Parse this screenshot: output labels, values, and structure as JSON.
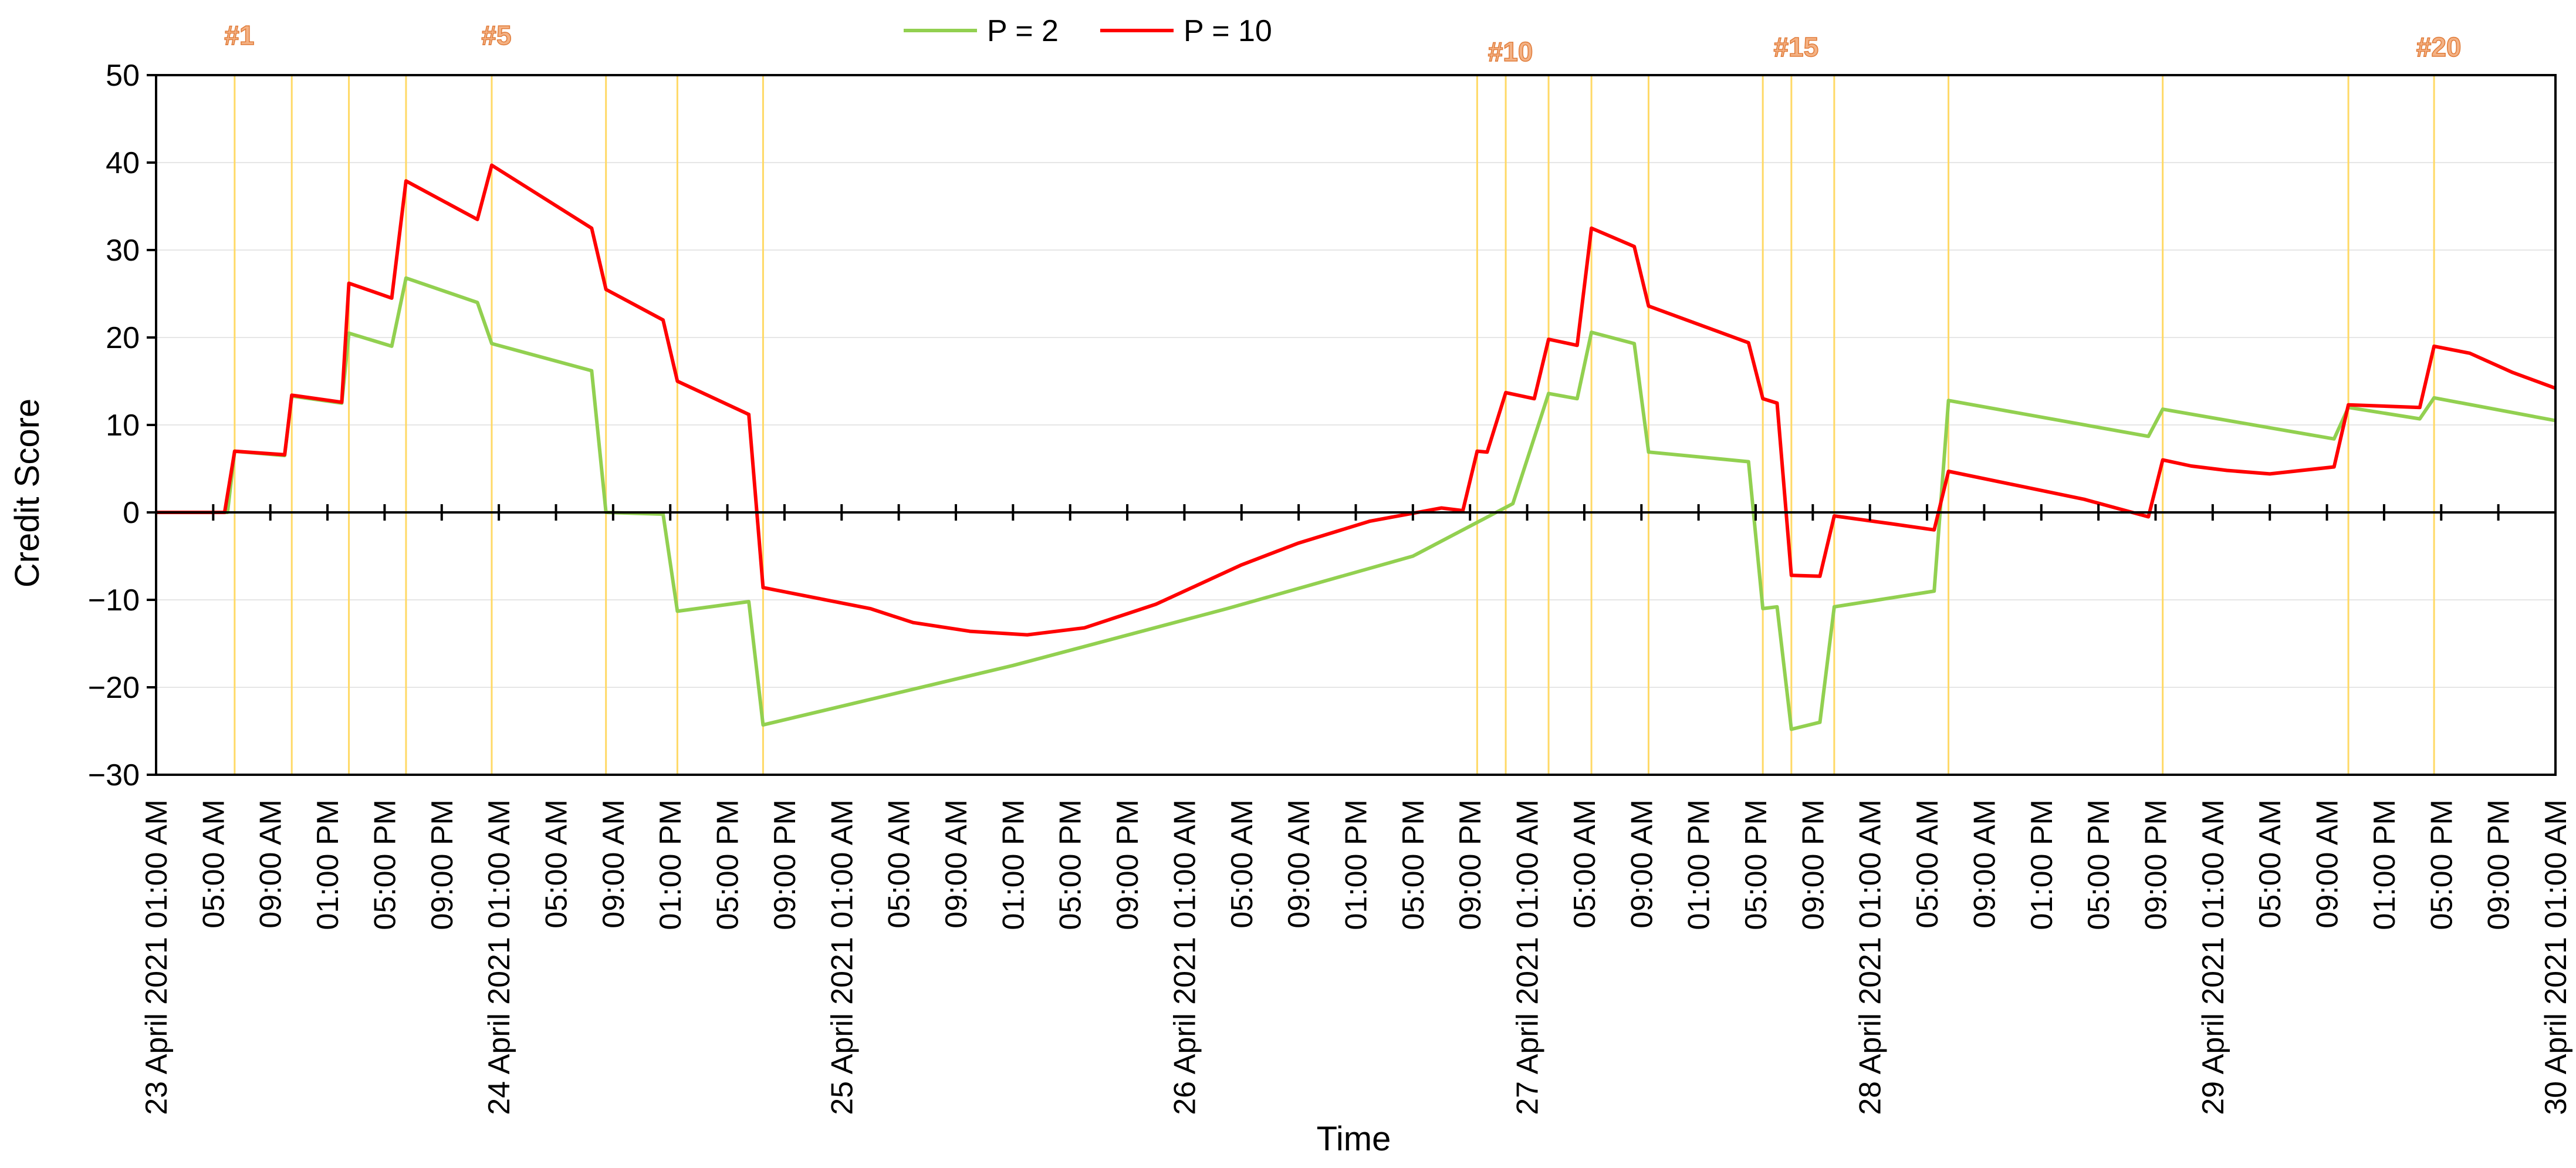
{
  "chart_data": {
    "type": "line",
    "xlabel": "Time",
    "ylabel": "Credit Score",
    "ylim": [
      -30,
      50
    ],
    "yticks": [
      -30,
      -20,
      -10,
      0,
      10,
      20,
      30,
      40,
      50
    ],
    "x_range_hours": [
      0,
      168
    ],
    "x_tick_labels": [
      "23 April 2021 01:00 AM",
      "05:00 AM",
      "09:00 AM",
      "01:00 PM",
      "05:00 PM",
      "09:00 PM",
      "24 April 2021 01:00 AM",
      "05:00 AM",
      "09:00 AM",
      "01:00 PM",
      "05:00 PM",
      "09:00 PM",
      "25 April 2021 01:00 AM",
      "05:00 AM",
      "09:00 AM",
      "01:00 PM",
      "05:00 PM",
      "09:00 PM",
      "26 April 2021 01:00 AM",
      "05:00 AM",
      "09:00 AM",
      "01:00 PM",
      "05:00 PM",
      "09:00 PM",
      "27 April 2021 01:00 AM",
      "05:00 AM",
      "09:00 AM",
      "01:00 PM",
      "05:00 PM",
      "09:00 PM",
      "28 April 2021 01:00 AM",
      "05:00 AM",
      "09:00 AM",
      "01:00 PM",
      "05:00 PM",
      "09:00 PM",
      "29 April 2021 01:00 AM",
      "05:00 AM",
      "09:00 AM",
      "01:00 PM",
      "05:00 PM",
      "09:00 PM",
      "30 April 2021 01:00 AM"
    ],
    "grid": true,
    "legend_position": "top",
    "event_lines_hours": [
      5.5,
      9.5,
      13.5,
      17.5,
      23.5,
      31.5,
      36.5,
      42.5,
      92.5,
      94.5,
      97.5,
      100.5,
      104.5,
      112.5,
      114.5,
      117.5,
      125.5,
      140.5,
      153.5,
      159.5
    ],
    "event_labels": [
      {
        "text": "#1",
        "event_index": 0
      },
      {
        "text": "#5",
        "event_index": 4
      },
      {
        "text": "#10",
        "event_index": 9
      },
      {
        "text": "#15",
        "event_index": 14
      },
      {
        "text": "#20",
        "event_index": 19
      }
    ],
    "series": [
      {
        "name": "P = 2",
        "color": "#92d050",
        "points": [
          [
            0,
            0
          ],
          [
            5,
            0
          ],
          [
            5.5,
            7
          ],
          [
            9,
            6.5
          ],
          [
            9.5,
            13.3
          ],
          [
            13,
            12.5
          ],
          [
            13.5,
            20.5
          ],
          [
            16.5,
            19
          ],
          [
            17.5,
            26.8
          ],
          [
            22.5,
            24
          ],
          [
            23.5,
            19.3
          ],
          [
            30.5,
            16.2
          ],
          [
            31.5,
            0
          ],
          [
            35.5,
            -0.2
          ],
          [
            36.5,
            -11.3
          ],
          [
            41.5,
            -10.2
          ],
          [
            42.5,
            -24.3
          ],
          [
            60,
            -17.5
          ],
          [
            75,
            -11
          ],
          [
            88,
            -5
          ],
          [
            95,
            1
          ],
          [
            97.5,
            13.6
          ],
          [
            99.5,
            13
          ],
          [
            100.5,
            20.6
          ],
          [
            103.5,
            19.3
          ],
          [
            104.5,
            6.9
          ],
          [
            111.5,
            5.8
          ],
          [
            112.5,
            -11
          ],
          [
            113.5,
            -10.8
          ],
          [
            114.5,
            -24.8
          ],
          [
            116.5,
            -24
          ],
          [
            117.5,
            -10.8
          ],
          [
            124.5,
            -9
          ],
          [
            125.5,
            12.8
          ],
          [
            139.5,
            8.7
          ],
          [
            140.5,
            11.8
          ],
          [
            152.5,
            8.4
          ],
          [
            153.5,
            12
          ],
          [
            158.5,
            10.7
          ],
          [
            159.5,
            13.1
          ],
          [
            168,
            10.5
          ]
        ]
      },
      {
        "name": "P = 10",
        "color": "#ff0000",
        "points": [
          [
            0,
            0
          ],
          [
            4.8,
            0
          ],
          [
            5.5,
            7
          ],
          [
            9,
            6.6
          ],
          [
            9.5,
            13.4
          ],
          [
            13,
            12.6
          ],
          [
            13.5,
            26.2
          ],
          [
            16.5,
            24.5
          ],
          [
            17.5,
            37.9
          ],
          [
            22.5,
            33.5
          ],
          [
            23.5,
            39.7
          ],
          [
            30.5,
            32.5
          ],
          [
            31.5,
            25.5
          ],
          [
            35.5,
            22
          ],
          [
            36.5,
            15
          ],
          [
            41.5,
            11.2
          ],
          [
            42.5,
            -8.6
          ],
          [
            50,
            -11
          ],
          [
            53,
            -12.6
          ],
          [
            57,
            -13.6
          ],
          [
            61,
            -14
          ],
          [
            65,
            -13.2
          ],
          [
            70,
            -10.5
          ],
          [
            76,
            -6
          ],
          [
            80,
            -3.5
          ],
          [
            85,
            -1
          ],
          [
            90,
            0.5
          ],
          [
            91.5,
            0.2
          ],
          [
            92.5,
            7
          ],
          [
            93.2,
            6.9
          ],
          [
            94.5,
            13.7
          ],
          [
            96.5,
            13
          ],
          [
            97.5,
            19.8
          ],
          [
            99.5,
            19.1
          ],
          [
            100.5,
            32.5
          ],
          [
            103.5,
            30.4
          ],
          [
            104.5,
            23.6
          ],
          [
            111.5,
            19.4
          ],
          [
            112.5,
            13
          ],
          [
            113.5,
            12.5
          ],
          [
            114.5,
            -7.2
          ],
          [
            116.5,
            -7.3
          ],
          [
            117.5,
            -0.4
          ],
          [
            121.5,
            -1.3
          ],
          [
            124.5,
            -2
          ],
          [
            125.5,
            4.7
          ],
          [
            135,
            1.5
          ],
          [
            139.5,
            -0.5
          ],
          [
            140.5,
            6
          ],
          [
            142.5,
            5.3
          ],
          [
            145,
            4.8
          ],
          [
            148,
            4.4
          ],
          [
            152.5,
            5.2
          ],
          [
            153.5,
            12.3
          ],
          [
            158.5,
            12
          ],
          [
            159.5,
            19
          ],
          [
            162,
            18.2
          ],
          [
            165,
            16
          ],
          [
            168,
            14.2
          ]
        ]
      }
    ]
  }
}
